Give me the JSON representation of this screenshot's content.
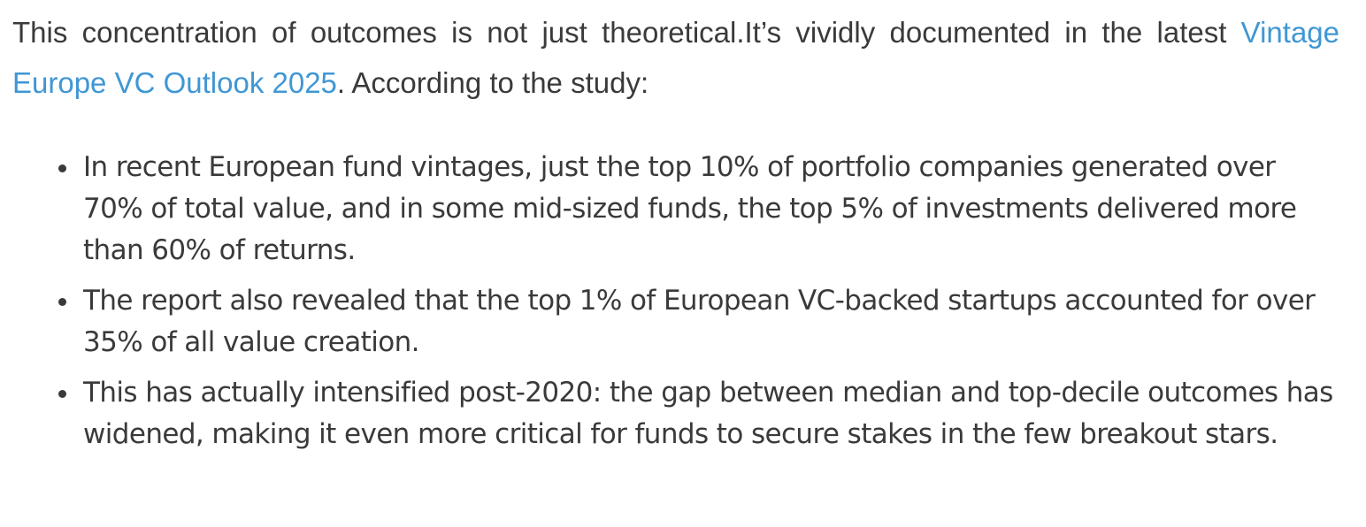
{
  "intro": {
    "text_before": "This concentration of outcomes is not just theoretical.It’s vividly documented in the latest ",
    "link_text": "Vintage Europe VC Outlook 2025",
    "text_after": ". According to the study:"
  },
  "findings": [
    "In recent European fund vintages, just the top 10% of portfolio companies generated over 70% of total value, and in some mid-sized funds, the top 5% of investments delivered more than 60% of returns.",
    "The report also revealed that the top 1% of European VC-backed startups accounted for over 35% of all value creation.",
    "This has actually intensified post-2020: the gap between median and top-decile outcomes has widened, making it even more critical for funds to secure stakes in the few breakout stars."
  ],
  "colors": {
    "text": "#3a3a3a",
    "link": "#3f97d4"
  }
}
